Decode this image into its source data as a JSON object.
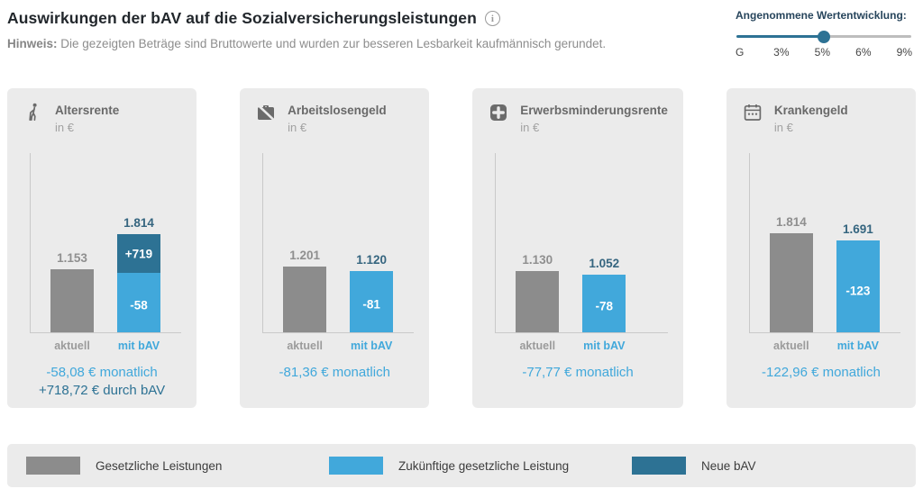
{
  "header": {
    "title": "Auswirkungen der bAV auf die Sozialversicherungsleistungen",
    "info_icon": "info-icon",
    "hint_label": "Hinweis:",
    "hint_text": "Die gezeigten Beträge sind Bruttowerte und wurden zur besseren Lesbarkeit kaufmännisch gerundet."
  },
  "slider": {
    "label": "Angenommene Wertentwicklung:",
    "options": [
      "G",
      "3%",
      "5%",
      "6%",
      "9%"
    ],
    "selected": "5%",
    "selected_index": 2,
    "track_color_active": "#2d7294",
    "track_color_inactive": "#bdbdbd",
    "thumb_color": "#2d7294"
  },
  "colors": {
    "gray": "#8c8c8c",
    "light": "#41a8db",
    "dark": "#2d7294",
    "card_bg": "#ebebeb"
  },
  "chart_data": [
    {
      "type": "bar",
      "icon": "elderly-icon",
      "title": "Altersrente",
      "unit": "in €",
      "categories": [
        "aktuell",
        "mit bAV"
      ],
      "bars": [
        {
          "x_label": "aktuell",
          "type": "gray",
          "color": "gray",
          "value": 1153,
          "label": "1.153"
        },
        {
          "x_label": "mit bAV",
          "type": "stacked",
          "value": 1814,
          "label": "1.814",
          "segments": [
            {
              "color": "dark",
              "value": 719,
              "label": "+719"
            },
            {
              "color": "light",
              "value": 1095,
              "label": "-58"
            }
          ]
        }
      ],
      "summary": [
        {
          "text": "-58,08 € monatlich",
          "style": "light"
        },
        {
          "text": "+718,72 € durch bAV",
          "style": "dark"
        }
      ]
    },
    {
      "type": "bar",
      "icon": "work-off-icon",
      "title": "Arbeitslosengeld",
      "unit": "in €",
      "categories": [
        "aktuell",
        "mit bAV"
      ],
      "bars": [
        {
          "x_label": "aktuell",
          "type": "gray",
          "color": "gray",
          "value": 1201,
          "label": "1.201"
        },
        {
          "x_label": "mit bAV",
          "type": "single",
          "color": "light",
          "value": 1120,
          "label": "1.120",
          "inner_label": "-81"
        }
      ],
      "summary": [
        {
          "text": "-81,36 € monatlich",
          "style": "light"
        }
      ]
    },
    {
      "type": "bar",
      "icon": "medical-cross-icon",
      "title": "Erwerbsminderungsrente",
      "unit": "in €",
      "categories": [
        "aktuell",
        "mit bAV"
      ],
      "bars": [
        {
          "x_label": "aktuell",
          "type": "gray",
          "color": "gray",
          "value": 1130,
          "label": "1.130"
        },
        {
          "x_label": "mit bAV",
          "type": "single",
          "color": "light",
          "value": 1052,
          "label": "1.052",
          "inner_label": "-78"
        }
      ],
      "summary": [
        {
          "text": "-77,77 € monatlich",
          "style": "light"
        }
      ]
    },
    {
      "type": "bar",
      "icon": "calendar-icon",
      "title": "Krankengeld",
      "unit": "in €",
      "categories": [
        "aktuell",
        "mit bAV"
      ],
      "bars": [
        {
          "x_label": "aktuell",
          "type": "gray",
          "color": "gray",
          "value": 1814,
          "label": "1.814"
        },
        {
          "x_label": "mit bAV",
          "type": "single",
          "color": "light",
          "value": 1691,
          "label": "1.691",
          "inner_label": "-123"
        }
      ],
      "summary": [
        {
          "text": "-122,96 € monatlich",
          "style": "light"
        }
      ]
    }
  ],
  "legend": {
    "items": [
      {
        "label": "Gesetzliche Leistungen",
        "color": "#8c8c8c"
      },
      {
        "label": "Zukünftige gesetzliche Leistung",
        "color": "#41a8db"
      },
      {
        "label": "Neue bAV",
        "color": "#2d7294"
      }
    ]
  }
}
